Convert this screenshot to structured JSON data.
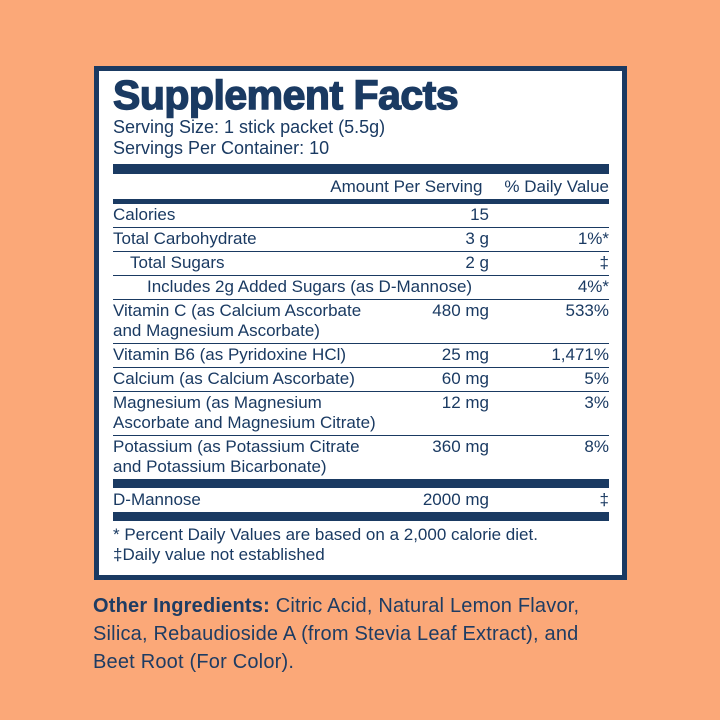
{
  "colors": {
    "background": "#FBA878",
    "navy": "#1A3A62",
    "panel_background": "#FFFFFF"
  },
  "panel": {
    "title": "Supplement Facts",
    "serving_size": "Serving Size: 1 stick packet (5.5g)",
    "servings_per_container": "Servings Per Container: 10",
    "columns": {
      "amount": "Amount Per Serving",
      "daily_value": "% Daily Value"
    },
    "rows": [
      {
        "name": "Calories",
        "amount": "15",
        "dv": "",
        "indent": 0
      },
      {
        "name": "Total Carbohydrate",
        "amount": "3 g",
        "dv": "1%*",
        "indent": 0
      },
      {
        "name": "Total Sugars",
        "amount": "2 g",
        "dv": "‡",
        "indent": 1
      },
      {
        "name": "Includes 2g Added Sugars (as D-Mannose)",
        "amount": "",
        "dv": "4%*",
        "indent": 2
      },
      {
        "name": "Vitamin C (as Calcium Ascorbate\nand Magnesium Ascorbate)",
        "amount": "480 mg",
        "dv": "533%",
        "indent": 0
      },
      {
        "name": "Vitamin B6 (as Pyridoxine HCl)",
        "amount": "25 mg",
        "dv": "1,471%",
        "indent": 0
      },
      {
        "name": "Calcium (as Calcium Ascorbate)",
        "amount": "60 mg",
        "dv": "5%",
        "indent": 0
      },
      {
        "name": "Magnesium (as Magnesium\nAscorbate and Magnesium Citrate)",
        "amount": "12 mg",
        "dv": "3%",
        "indent": 0
      },
      {
        "name": "Potassium (as Potassium Citrate\nand Potassium Bicarbonate)",
        "amount": "360 mg",
        "dv": "8%",
        "indent": 0
      }
    ],
    "dmannose_row": {
      "name": "D-Mannose",
      "amount": "2000 mg",
      "dv": "‡"
    },
    "footnotes": [
      "* Percent Daily Values are based on a 2,000 calorie diet.",
      "‡Daily value not established"
    ]
  },
  "other_ingredients": {
    "label": "Other Ingredients:",
    "text": " Citric Acid, Natural Lemon Flavor,\nSilica, Rebaudioside A (from Stevia Leaf Extract), and\nBeet Root (For Color)."
  }
}
